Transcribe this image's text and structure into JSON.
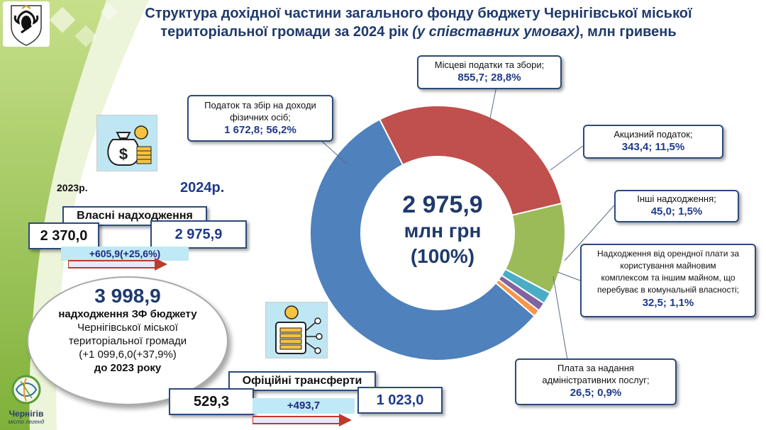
{
  "colors": {
    "pit": "#4f81bd",
    "local_taxes": "#c0504d",
    "excise": "#9bbb59",
    "other": "#4bacc6",
    "rent": "#8064a2",
    "admin": "#f79646",
    "accent": "#1f3a6b"
  },
  "title": {
    "line1": "Структура дохідної частини загального фонду бюджету Чернігівської міської",
    "line2_start": "територіальної громади за 2024 рік ",
    "line2_italic": "(у співставних умовах)",
    "line2_end": ", млн гривень"
  },
  "chart_data": {
    "type": "pie",
    "style": "donut",
    "slices": [
      {
        "key": "pit",
        "label": "Податок та збір на доходи фізичних осіб;",
        "value": 1672.8,
        "percent": 56.2,
        "display": "1 672,8; 56,2%"
      },
      {
        "key": "local_taxes",
        "label": "Місцеві податки та збори;",
        "value": 855.7,
        "percent": 28.8,
        "display": "855,7; 28,8%"
      },
      {
        "key": "excise",
        "label": "Акцизний податок;",
        "value": 343.4,
        "percent": 11.5,
        "display": "343,4; 11,5%"
      },
      {
        "key": "other",
        "label": "Інші надходження;",
        "value": 45.0,
        "percent": 1.5,
        "display": "45,0; 1,5%"
      },
      {
        "key": "rent",
        "label": "Надходження від орендної плати за користування майновим комплексом та іншим майном, що перебуває в комунальній власності;",
        "value": 32.5,
        "percent": 1.1,
        "display": "32,5; 1,1%"
      },
      {
        "key": "admin",
        "label": "Плата за надання адміністративних послуг;",
        "value": 26.5,
        "percent": 0.9,
        "display": "26,5; 0,9%"
      }
    ],
    "center": {
      "value": "2 975,9",
      "unit": "млн грн",
      "share": "(100%)"
    }
  },
  "labels": {
    "pit": [
      "Податок та збір на доходи",
      "фізичних осіб;"
    ],
    "local_taxes": [
      "Місцеві податки та збори;"
    ],
    "excise": [
      "Акцизний податок;"
    ],
    "other": [
      "Інші надходження;"
    ],
    "rent": [
      "Надходження від орендної плати за",
      "користування  майновим",
      "комплексом та іншим майном, що",
      "перебуває в комунальній власності;"
    ],
    "admin": [
      "Плата за надання",
      "адміністративних послуг;"
    ]
  },
  "left": {
    "year_prev": "2023р.",
    "year_curr": "2024р.",
    "own_title": "Власні надходження",
    "own_prev": "2 370,0",
    "own_curr": "2 975,9",
    "own_delta": "+605,9(+25,6%)",
    "total_value": "3 998,9",
    "total_lines": [
      "надходження ЗФ бюджету",
      "Чернігівської міської",
      "територіальної громади",
      "(+1 099,6,0(+37,9%)",
      "до 2023 року"
    ],
    "transfers_title": "Офіційні трансферти",
    "transfers_prev": "529,3",
    "transfers_curr": "1 023,0",
    "transfers_delta": "+493,7"
  },
  "logo": {
    "line1": "Чернігів",
    "line2": "місто легенд"
  }
}
